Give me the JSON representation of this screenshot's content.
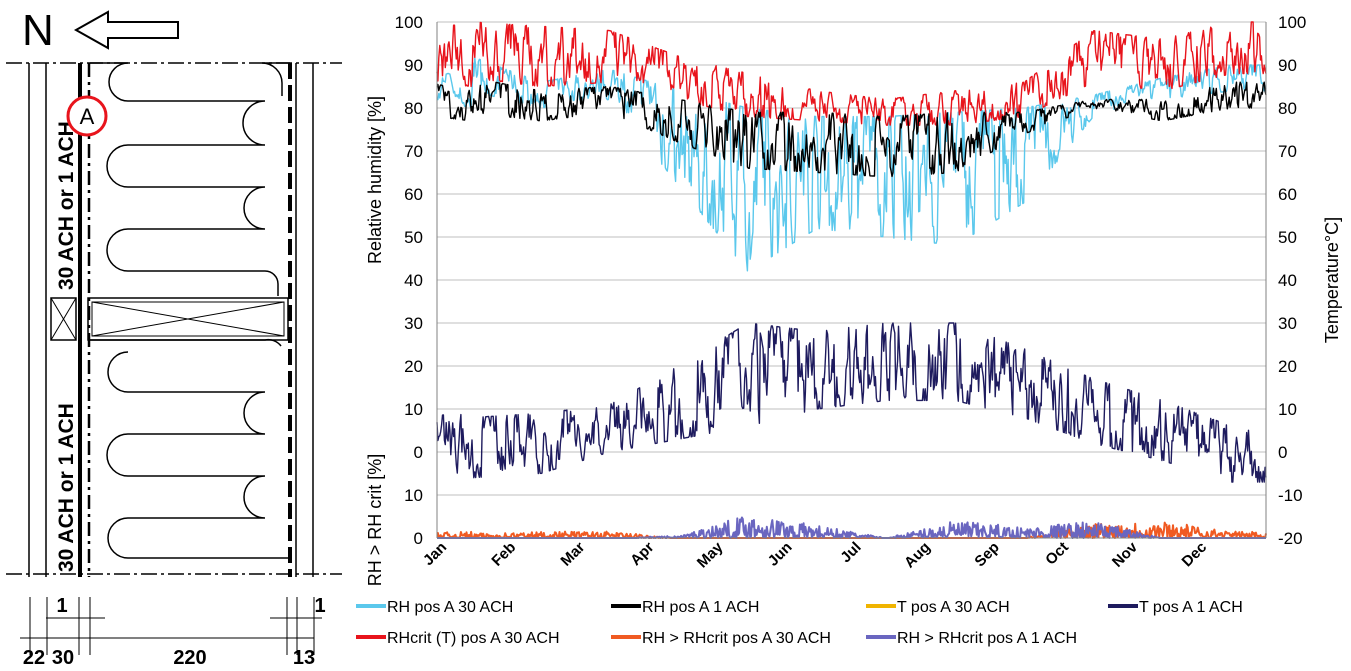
{
  "diagram": {
    "north_label": "N",
    "position_marker": "A",
    "zone_label_upper": "30 ACH or 1 ACH",
    "zone_label_lower": "30 ACH or 1 ACH",
    "dimensions": {
      "small_top_left": "1",
      "small_top_right": "1",
      "bottom": [
        "22",
        "30",
        "220",
        "13"
      ]
    }
  },
  "chart_data": {
    "type": "line",
    "title": "",
    "x": {
      "categories": [
        "Jan",
        "Feb",
        "Mar",
        "Apr",
        "May",
        "Jun",
        "Jul",
        "Aug",
        "Sep",
        "Oct",
        "Nov",
        "Dec"
      ]
    },
    "y_left": {
      "label": "Relative humidity [%]",
      "ticks": [
        0,
        10,
        20,
        30,
        40,
        50,
        60,
        70,
        80,
        90,
        100
      ],
      "ylim": [
        0,
        100
      ]
    },
    "y_left_lower": {
      "label": "RH > RH crit [%]",
      "ticks": [
        0,
        10
      ],
      "ylim": [
        0,
        20
      ]
    },
    "y_right": {
      "label": "Temperature°C]",
      "ticks": [
        -20,
        -10,
        0,
        10,
        20,
        30,
        40,
        50,
        60,
        70,
        80,
        90,
        100
      ],
      "ylim": [
        -20,
        100
      ]
    },
    "grid": true,
    "legend_position": "bottom",
    "series": [
      {
        "name": "RH pos A 30 ACH",
        "axis": "rh",
        "color": "#5bc8ec",
        "monthly_upper": [
          92,
          86,
          89,
          84,
          80,
          78,
          78,
          79,
          80,
          83,
          87,
          90
        ],
        "monthly_lower": [
          84,
          80,
          82,
          62,
          42,
          52,
          50,
          48,
          58,
          78,
          82,
          84
        ]
      },
      {
        "name": "RH pos A 1 ACH",
        "axis": "rh",
        "color": "#000000",
        "monthly_upper": [
          87,
          84,
          85,
          82,
          79,
          79,
          78,
          79,
          79,
          82,
          82,
          86
        ],
        "monthly_lower": [
          79,
          77,
          79,
          72,
          66,
          65,
          64,
          65,
          74,
          80,
          77,
          80
        ]
      },
      {
        "name": "T pos A 30 ACH",
        "axis": "t",
        "color": "#f0b400",
        "monthly_upper": [],
        "monthly_lower": []
      },
      {
        "name": "T pos A 1 ACH",
        "axis": "t",
        "color": "#1e1b5e",
        "monthly_upper": [
          8,
          9,
          11,
          20,
          30,
          28,
          30,
          30,
          24,
          17,
          12,
          6
        ],
        "monthly_lower": [
          -6,
          -5,
          0,
          3,
          6,
          10,
          12,
          12,
          8,
          2,
          -2,
          -7
        ]
      },
      {
        "name": "RHcrit (T) pos A 30 ACH",
        "axis": "rh",
        "color": "#e8141c",
        "monthly_upper": [
          100,
          99,
          98,
          92,
          88,
          84,
          82,
          84,
          86,
          98,
          96,
          100
        ],
        "monthly_lower": [
          87,
          85,
          86,
          82,
          78,
          77,
          76,
          76,
          78,
          86,
          84,
          88
        ]
      },
      {
        "name": "RH > RHcrit pos A 30 ACH",
        "axis": "exceed",
        "color": "#f05a22",
        "monthly_upper": [
          1,
          1.5,
          1.5,
          0,
          0,
          0,
          0,
          0,
          0,
          3.5,
          4,
          1.5
        ],
        "monthly_lower": [
          0,
          0,
          0,
          0,
          0,
          0,
          0,
          0,
          0,
          0,
          0,
          0
        ]
      },
      {
        "name": "RH > RHcrit pos A 1 ACH",
        "axis": "exceed",
        "color": "#6a66c0",
        "monthly_upper": [
          0,
          0,
          0,
          0.5,
          5.5,
          3,
          0,
          4,
          2.5,
          4,
          0,
          0
        ],
        "monthly_lower": [
          0,
          0,
          0,
          0,
          0,
          0,
          0,
          0,
          0,
          0,
          0,
          0
        ]
      }
    ]
  }
}
